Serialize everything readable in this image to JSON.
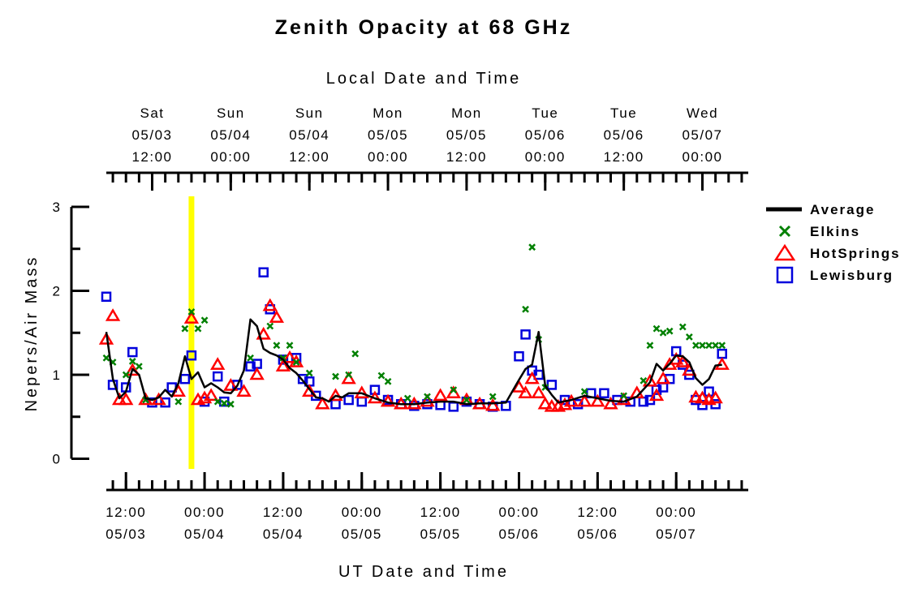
{
  "chart_data": {
    "type": "scatter",
    "title": "Zenith Opacity at 68 GHz",
    "xlabel": "UT Date and Time",
    "x2label": "Local Date and Time",
    "ylabel": "Nepers/Air Mass",
    "ylim": [
      0,
      3
    ],
    "yticks": [
      "3",
      "2",
      "1",
      "0"
    ],
    "xlim": [
      "2003-05-03 09:00",
      "2003-05-07 11:00"
    ],
    "bottom_ticks": [
      {
        "x": "2003-05-03 12:00",
        "time": "12:00",
        "date": "05/03"
      },
      {
        "x": "2003-05-04 00:00",
        "time": "00:00",
        "date": "05/04"
      },
      {
        "x": "2003-05-04 12:00",
        "time": "12:00",
        "date": "05/04"
      },
      {
        "x": "2003-05-05 00:00",
        "time": "00:00",
        "date": "05/05"
      },
      {
        "x": "2003-05-05 12:00",
        "time": "12:00",
        "date": "05/05"
      },
      {
        "x": "2003-05-06 00:00",
        "time": "00:00",
        "date": "05/06"
      },
      {
        "x": "2003-05-06 12:00",
        "time": "12:00",
        "date": "05/06"
      },
      {
        "x": "2003-05-07 00:00",
        "time": "00:00",
        "date": "05/07"
      }
    ],
    "top_ticks": [
      {
        "x": "2003-05-03 16:00",
        "day": "Sat",
        "date": "05/03",
        "time": "12:00"
      },
      {
        "x": "2003-05-04 04:00",
        "day": "Sun",
        "date": "05/04",
        "time": "00:00"
      },
      {
        "x": "2003-05-04 16:00",
        "day": "Sun",
        "date": "05/04",
        "time": "12:00"
      },
      {
        "x": "2003-05-05 04:00",
        "day": "Mon",
        "date": "05/05",
        "time": "00:00"
      },
      {
        "x": "2003-05-05 16:00",
        "day": "Mon",
        "date": "05/05",
        "time": "12:00"
      },
      {
        "x": "2003-05-06 04:00",
        "day": "Tue",
        "date": "05/06",
        "time": "00:00"
      },
      {
        "x": "2003-05-06 16:00",
        "day": "Tue",
        "date": "05/06",
        "time": "12:00"
      },
      {
        "x": "2003-05-07 04:00",
        "day": "Wed",
        "date": "05/07",
        "time": "00:00"
      }
    ],
    "highlight_x": "2003-05-03 22:00",
    "highlight_color": "#ffff00",
    "legend_position": "right",
    "series": [
      {
        "name": "Average",
        "marker": "line",
        "color": "#000000",
        "x": [
          "2003-05-03 09:00",
          "2003-05-03 10:00",
          "2003-05-03 11:00",
          "2003-05-03 12:00",
          "2003-05-03 13:00",
          "2003-05-03 14:00",
          "2003-05-03 15:00",
          "2003-05-03 16:00",
          "2003-05-03 17:00",
          "2003-05-03 18:00",
          "2003-05-03 19:00",
          "2003-05-03 20:00",
          "2003-05-03 21:00",
          "2003-05-03 22:00",
          "2003-05-03 23:00",
          "2003-05-04 00:00",
          "2003-05-04 01:00",
          "2003-05-04 02:00",
          "2003-05-04 03:00",
          "2003-05-04 04:00",
          "2003-05-04 05:00",
          "2003-05-04 06:00",
          "2003-05-04 07:00",
          "2003-05-04 08:00",
          "2003-05-04 09:00",
          "2003-05-04 10:00",
          "2003-05-04 11:00",
          "2003-05-04 12:00",
          "2003-05-04 13:00",
          "2003-05-04 14:00",
          "2003-05-04 15:00",
          "2003-05-04 16:00",
          "2003-05-04 17:00",
          "2003-05-04 18:00",
          "2003-05-04 19:00",
          "2003-05-04 20:00",
          "2003-05-04 21:00",
          "2003-05-04 22:00",
          "2003-05-05 00:00",
          "2003-05-05 02:00",
          "2003-05-05 04:00",
          "2003-05-05 06:00",
          "2003-05-05 08:00",
          "2003-05-05 10:00",
          "2003-05-05 12:00",
          "2003-05-05 14:00",
          "2003-05-05 16:00",
          "2003-05-05 18:00",
          "2003-05-05 20:00",
          "2003-05-05 22:00",
          "2003-05-06 00:00",
          "2003-05-06 01:00",
          "2003-05-06 02:00",
          "2003-05-06 03:00",
          "2003-05-06 04:00",
          "2003-05-06 05:00",
          "2003-05-06 06:00",
          "2003-05-06 08:00",
          "2003-05-06 10:00",
          "2003-05-06 12:00",
          "2003-05-06 14:00",
          "2003-05-06 16:00",
          "2003-05-06 18:00",
          "2003-05-06 20:00",
          "2003-05-06 21:00",
          "2003-05-06 22:00",
          "2003-05-06 23:00",
          "2003-05-07 00:00",
          "2003-05-07 01:00",
          "2003-05-07 02:00",
          "2003-05-07 03:00",
          "2003-05-07 04:00",
          "2003-05-07 05:00",
          "2003-05-07 06:00",
          "2003-05-07 07:00"
        ],
        "y": [
          1.51,
          0.95,
          0.72,
          0.8,
          1.07,
          1.0,
          0.72,
          0.7,
          0.73,
          0.82,
          0.74,
          0.9,
          1.22,
          0.95,
          1.03,
          0.85,
          0.9,
          0.85,
          0.79,
          0.78,
          0.87,
          1.05,
          1.66,
          1.58,
          1.31,
          1.26,
          1.23,
          1.18,
          1.08,
          1.02,
          0.93,
          0.83,
          0.73,
          0.72,
          0.68,
          0.75,
          0.73,
          0.78,
          0.78,
          0.72,
          0.67,
          0.65,
          0.65,
          0.67,
          0.68,
          0.68,
          0.65,
          0.66,
          0.66,
          0.67,
          0.94,
          1.07,
          1.12,
          1.51,
          0.87,
          0.76,
          0.67,
          0.7,
          0.75,
          0.72,
          0.69,
          0.68,
          0.74,
          0.91,
          1.13,
          1.05,
          1.13,
          1.23,
          1.22,
          1.15,
          0.96,
          0.88,
          0.95,
          1.11,
          1.12
        ]
      },
      {
        "name": "Elkins",
        "marker": "x",
        "color": "#008000",
        "x": [
          "2003-05-03 09:00",
          "2003-05-03 10:00",
          "2003-05-03 12:00",
          "2003-05-03 13:00",
          "2003-05-03 14:00",
          "2003-05-03 15:00",
          "2003-05-03 20:00",
          "2003-05-03 21:00",
          "2003-05-03 22:00",
          "2003-05-03 23:00",
          "2003-05-04 00:00",
          "2003-05-04 02:00",
          "2003-05-04 03:00",
          "2003-05-04 04:00",
          "2003-05-04 07:00",
          "2003-05-04 10:00",
          "2003-05-04 11:00",
          "2003-05-04 12:00",
          "2003-05-04 13:00",
          "2003-05-04 14:00",
          "2003-05-04 16:00",
          "2003-05-04 20:00",
          "2003-05-04 22:00",
          "2003-05-04 23:00",
          "2003-05-05 03:00",
          "2003-05-05 04:00",
          "2003-05-05 07:00",
          "2003-05-05 10:00",
          "2003-05-05 14:00",
          "2003-05-05 16:00",
          "2003-05-05 20:00",
          "2003-05-06 01:00",
          "2003-05-06 02:00",
          "2003-05-06 03:00",
          "2003-05-06 04:00",
          "2003-05-06 10:00",
          "2003-05-06 16:00",
          "2003-05-06 19:00",
          "2003-05-06 20:00",
          "2003-05-06 21:00",
          "2003-05-06 22:00",
          "2003-05-06 23:00",
          "2003-05-07 01:00",
          "2003-05-07 02:00",
          "2003-05-07 03:00",
          "2003-05-07 04:00",
          "2003-05-07 05:00",
          "2003-05-07 06:00",
          "2003-05-07 07:00"
        ],
        "y": [
          1.2,
          1.15,
          1.0,
          1.16,
          1.1,
          0.7,
          0.68,
          1.55,
          1.75,
          1.55,
          1.65,
          0.68,
          0.66,
          0.65,
          1.2,
          1.58,
          1.35,
          1.2,
          1.35,
          1.15,
          1.02,
          0.98,
          1.0,
          1.25,
          0.99,
          0.92,
          0.72,
          0.74,
          0.82,
          0.7,
          0.74,
          1.78,
          2.52,
          1.42,
          0.85,
          0.8,
          0.75,
          0.93,
          1.35,
          1.55,
          1.5,
          1.52,
          1.57,
          1.45,
          1.35,
          1.35,
          1.35,
          1.35,
          1.35
        ]
      },
      {
        "name": "HotSprings",
        "marker": "triangle",
        "color": "#ff0000",
        "x": [
          "2003-05-03 09:00",
          "2003-05-03 10:00",
          "2003-05-03 11:00",
          "2003-05-03 12:00",
          "2003-05-03 13:00",
          "2003-05-03 15:00",
          "2003-05-03 17:00",
          "2003-05-03 20:00",
          "2003-05-03 22:00",
          "2003-05-03 23:00",
          "2003-05-04 00:00",
          "2003-05-04 01:00",
          "2003-05-04 02:00",
          "2003-05-04 04:00",
          "2003-05-04 06:00",
          "2003-05-04 08:00",
          "2003-05-04 09:00",
          "2003-05-04 10:00",
          "2003-05-04 11:00",
          "2003-05-04 12:00",
          "2003-05-04 13:00",
          "2003-05-04 14:00",
          "2003-05-04 16:00",
          "2003-05-04 18:00",
          "2003-05-04 20:00",
          "2003-05-04 22:00",
          "2003-05-05 00:00",
          "2003-05-05 02:00",
          "2003-05-05 04:00",
          "2003-05-05 06:00",
          "2003-05-05 08:00",
          "2003-05-05 10:00",
          "2003-05-05 12:00",
          "2003-05-05 14:00",
          "2003-05-05 16:00",
          "2003-05-05 18:00",
          "2003-05-05 20:00",
          "2003-05-06 00:00",
          "2003-05-06 01:00",
          "2003-05-06 02:00",
          "2003-05-06 03:00",
          "2003-05-06 04:00",
          "2003-05-06 05:00",
          "2003-05-06 06:00",
          "2003-05-06 07:00",
          "2003-05-06 08:00",
          "2003-05-06 10:00",
          "2003-05-06 12:00",
          "2003-05-06 14:00",
          "2003-05-06 16:00",
          "2003-05-06 18:00",
          "2003-05-06 20:00",
          "2003-05-06 21:00",
          "2003-05-06 22:00",
          "2003-05-06 23:00",
          "2003-05-07 00:00",
          "2003-05-07 01:00",
          "2003-05-07 02:00",
          "2003-05-07 03:00",
          "2003-05-07 04:00",
          "2003-05-07 05:00",
          "2003-05-07 06:00",
          "2003-05-07 07:00"
        ],
        "y": [
          1.42,
          1.7,
          0.7,
          0.7,
          1.05,
          0.7,
          0.7,
          0.8,
          1.67,
          0.7,
          0.72,
          0.75,
          1.12,
          0.87,
          0.8,
          1.0,
          1.48,
          1.82,
          1.68,
          1.1,
          1.2,
          1.15,
          0.8,
          0.65,
          0.75,
          0.95,
          0.78,
          0.72,
          0.68,
          0.65,
          0.65,
          0.68,
          0.75,
          0.78,
          0.7,
          0.65,
          0.63,
          0.85,
          0.78,
          0.95,
          0.78,
          0.65,
          0.62,
          0.62,
          0.64,
          0.68,
          0.68,
          0.68,
          0.65,
          0.7,
          0.78,
          0.92,
          0.75,
          0.95,
          1.12,
          1.18,
          1.15,
          1.05,
          0.73,
          0.72,
          0.7,
          0.72,
          1.12
        ]
      },
      {
        "name": "Lewisburg",
        "marker": "square",
        "color": "#0000dd",
        "x": [
          "2003-05-03 09:00",
          "2003-05-03 10:00",
          "2003-05-03 12:00",
          "2003-05-03 13:00",
          "2003-05-03 16:00",
          "2003-05-03 18:00",
          "2003-05-03 19:00",
          "2003-05-03 21:00",
          "2003-05-03 22:00",
          "2003-05-04 00:00",
          "2003-05-04 02:00",
          "2003-05-04 03:00",
          "2003-05-04 05:00",
          "2003-05-04 07:00",
          "2003-05-04 08:00",
          "2003-05-04 09:00",
          "2003-05-04 10:00",
          "2003-05-04 12:00",
          "2003-05-04 14:00",
          "2003-05-04 15:00",
          "2003-05-04 16:00",
          "2003-05-04 17:00",
          "2003-05-04 20:00",
          "2003-05-04 22:00",
          "2003-05-05 00:00",
          "2003-05-05 02:00",
          "2003-05-05 04:00",
          "2003-05-05 06:00",
          "2003-05-05 08:00",
          "2003-05-05 10:00",
          "2003-05-05 12:00",
          "2003-05-05 14:00",
          "2003-05-05 16:00",
          "2003-05-05 18:00",
          "2003-05-05 20:00",
          "2003-05-05 22:00",
          "2003-05-06 00:00",
          "2003-05-06 01:00",
          "2003-05-06 02:00",
          "2003-05-06 03:00",
          "2003-05-06 05:00",
          "2003-05-06 07:00",
          "2003-05-06 09:00",
          "2003-05-06 11:00",
          "2003-05-06 13:00",
          "2003-05-06 15:00",
          "2003-05-06 17:00",
          "2003-05-06 19:00",
          "2003-05-06 20:00",
          "2003-05-06 21:00",
          "2003-05-06 22:00",
          "2003-05-06 23:00",
          "2003-05-07 00:00",
          "2003-05-07 01:00",
          "2003-05-07 02:00",
          "2003-05-07 03:00",
          "2003-05-07 04:00",
          "2003-05-07 05:00",
          "2003-05-07 06:00",
          "2003-05-07 07:00"
        ],
        "y": [
          1.93,
          0.88,
          0.85,
          1.27,
          0.67,
          0.67,
          0.85,
          0.95,
          1.23,
          0.68,
          0.98,
          0.68,
          0.88,
          1.1,
          1.13,
          2.22,
          1.78,
          1.18,
          1.2,
          0.95,
          0.92,
          0.75,
          0.65,
          0.7,
          0.68,
          0.82,
          0.7,
          0.65,
          0.63,
          0.65,
          0.64,
          0.62,
          0.68,
          0.65,
          0.62,
          0.63,
          1.22,
          1.48,
          1.05,
          1.0,
          0.88,
          0.7,
          0.65,
          0.78,
          0.78,
          0.7,
          0.68,
          0.68,
          0.7,
          0.82,
          0.85,
          0.95,
          1.28,
          1.12,
          1.0,
          0.7,
          0.64,
          0.8,
          0.65,
          1.25
        ]
      }
    ]
  }
}
